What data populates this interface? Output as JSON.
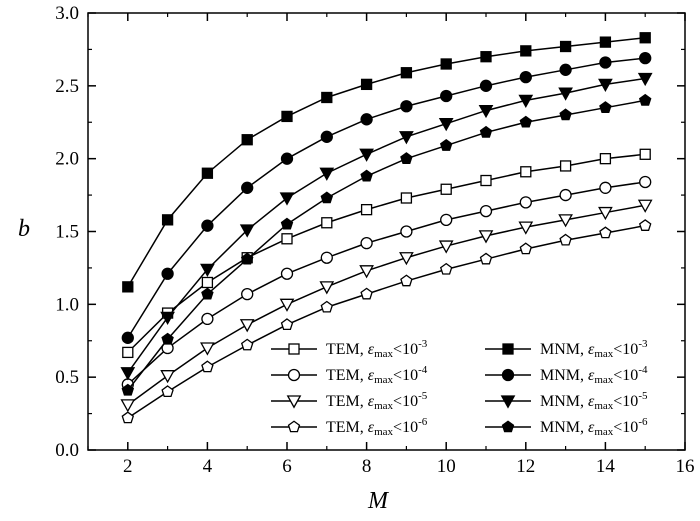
{
  "chart_data": {
    "type": "line",
    "title": "",
    "xlabel": "M",
    "ylabel": "b",
    "xlim": [
      1,
      16
    ],
    "ylim": [
      0,
      3.0
    ],
    "x_ticks": [
      "2",
      "4",
      "6",
      "8",
      "10",
      "12",
      "14",
      "16"
    ],
    "y_ticks": [
      "0.0",
      "0.5",
      "1.0",
      "1.5",
      "2.0",
      "2.5",
      "3.0"
    ],
    "grid": false,
    "legend_position": "bottom-right",
    "x": [
      2,
      3,
      4,
      5,
      6,
      7,
      8,
      9,
      10,
      11,
      12,
      13,
      14,
      15
    ],
    "series": [
      {
        "name": "TEM, εmax<10-3",
        "method": "TEM",
        "exponent": "-3",
        "marker": "square",
        "filled": false,
        "values": [
          0.67,
          0.94,
          1.15,
          1.32,
          1.45,
          1.56,
          1.65,
          1.73,
          1.79,
          1.85,
          1.91,
          1.95,
          2.0,
          2.03
        ]
      },
      {
        "name": "TEM, εmax<10-4",
        "method": "TEM",
        "exponent": "-4",
        "marker": "circle",
        "filled": false,
        "values": [
          0.45,
          0.7,
          0.9,
          1.07,
          1.21,
          1.32,
          1.42,
          1.5,
          1.58,
          1.64,
          1.7,
          1.75,
          1.8,
          1.84
        ]
      },
      {
        "name": "TEM, εmax<10-5",
        "method": "TEM",
        "exponent": "-5",
        "marker": "triangle-down",
        "filled": false,
        "values": [
          0.31,
          0.51,
          0.7,
          0.86,
          1.0,
          1.12,
          1.23,
          1.32,
          1.4,
          1.47,
          1.53,
          1.58,
          1.63,
          1.68
        ]
      },
      {
        "name": "TEM, εmax<10-6",
        "method": "TEM",
        "exponent": "-6",
        "marker": "pentagon",
        "filled": false,
        "values": [
          0.22,
          0.4,
          0.57,
          0.72,
          0.86,
          0.98,
          1.07,
          1.16,
          1.24,
          1.31,
          1.38,
          1.44,
          1.49,
          1.54
        ]
      },
      {
        "name": "MNM, εmax<10-3",
        "method": "MNM",
        "exponent": "-3",
        "marker": "square",
        "filled": true,
        "values": [
          1.12,
          1.58,
          1.9,
          2.13,
          2.29,
          2.42,
          2.51,
          2.59,
          2.65,
          2.7,
          2.74,
          2.77,
          2.8,
          2.83
        ]
      },
      {
        "name": "MNM, εmax<10-4",
        "method": "MNM",
        "exponent": "-4",
        "marker": "circle",
        "filled": true,
        "values": [
          0.77,
          1.21,
          1.54,
          1.8,
          2.0,
          2.15,
          2.27,
          2.36,
          2.43,
          2.5,
          2.56,
          2.61,
          2.66,
          2.69
        ]
      },
      {
        "name": "MNM, εmax<10-5",
        "method": "MNM",
        "exponent": "-5",
        "marker": "triangle-down",
        "filled": true,
        "values": [
          0.53,
          0.91,
          1.24,
          1.51,
          1.73,
          1.9,
          2.03,
          2.15,
          2.24,
          2.33,
          2.4,
          2.45,
          2.51,
          2.55
        ]
      },
      {
        "name": "MNM, εmax<10-6",
        "method": "MNM",
        "exponent": "-6",
        "marker": "pentagon",
        "filled": true,
        "values": [
          0.41,
          0.76,
          1.07,
          1.31,
          1.55,
          1.73,
          1.88,
          2.0,
          2.09,
          2.18,
          2.25,
          2.3,
          2.35,
          2.4
        ]
      }
    ],
    "legend_text": {
      "epsilon": "ε",
      "subscript": "max",
      "base": "10"
    },
    "colors": {
      "line": "#000000",
      "marker_fill": "#000000",
      "marker_hollow": "#ffffff"
    }
  }
}
